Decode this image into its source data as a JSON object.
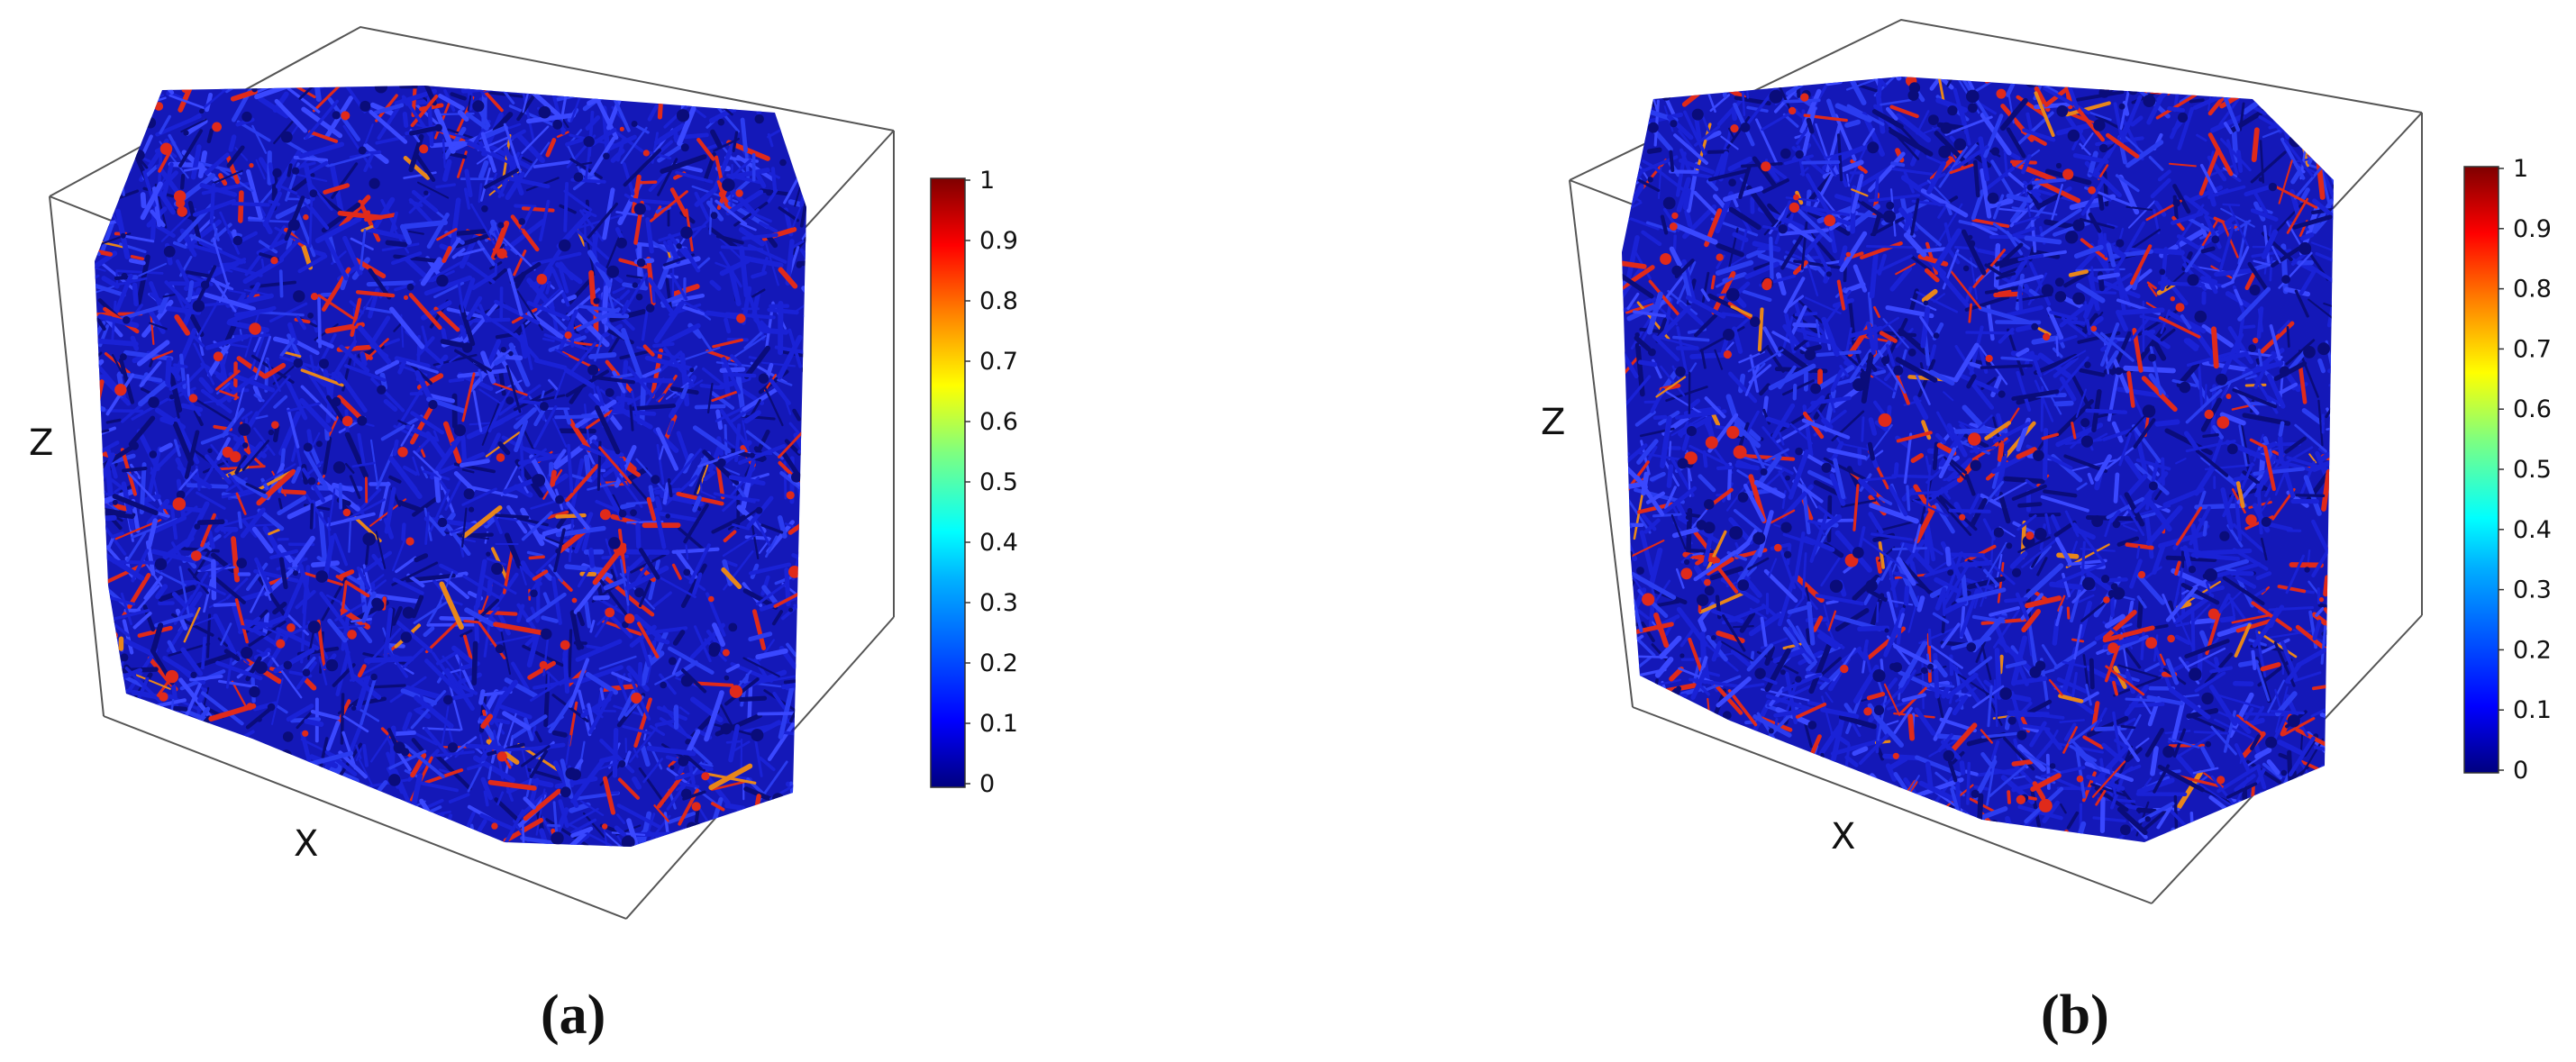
{
  "panels": [
    {
      "id": "a",
      "caption": "(a)",
      "axis_x": "X",
      "axis_z": "Z",
      "colorbar": {
        "ticks": [
          "1",
          "0.9",
          "0.8",
          "0.7",
          "0.6",
          "0.5",
          "0.4",
          "0.3",
          "0.2",
          "0.1",
          "0"
        ],
        "range": [
          0,
          1
        ]
      }
    },
    {
      "id": "b",
      "caption": "(b)",
      "axis_x": "X",
      "axis_z": "Z",
      "colorbar": {
        "ticks": [
          "1",
          "0.9",
          "0.8",
          "0.7",
          "0.6",
          "0.5",
          "0.4",
          "0.3",
          "0.2",
          "0.1",
          "0"
        ],
        "range": [
          0,
          1
        ]
      }
    }
  ],
  "colors": {
    "network_main": "#1a22d6",
    "network_dark": "#0a0c7a",
    "network_highlight": "#e02a1a",
    "network_accent": "#e8861a",
    "box_edge": "#555555"
  },
  "colormap": [
    "#00007f",
    "#0000ff",
    "#007fff",
    "#00ffff",
    "#7fff7f",
    "#ffff00",
    "#ff7f00",
    "#ff0000",
    "#7f0000"
  ]
}
